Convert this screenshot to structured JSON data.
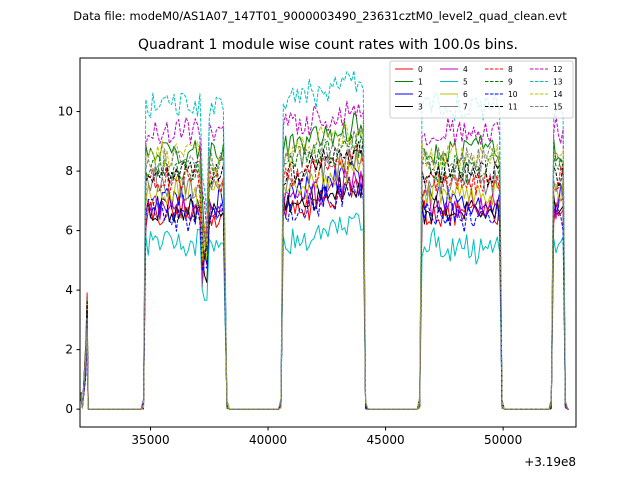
{
  "chart_data": {
    "type": "line",
    "suptitle": "Data file: modeM0/AS1A07_147T01_9000003490_23631cztM0_level2_quad_clean.evt",
    "title": "Quadrant 1 module wise count rates with 100.0s bins.",
    "xlabel": "",
    "ylabel": "",
    "x_offset_label": "+3.19e8",
    "xlim": [
      32000,
      53100
    ],
    "ylim": [
      -0.6,
      11.8
    ],
    "x_ticks": [
      35000,
      40000,
      45000,
      50000
    ],
    "x_tick_labels": [
      "35000",
      "40000",
      "45000",
      "50000"
    ],
    "y_ticks": [
      0,
      2,
      4,
      6,
      8,
      10
    ],
    "y_tick_labels": [
      "0",
      "2",
      "4",
      "6",
      "8",
      "10"
    ],
    "legend_position": "top-right",
    "intervals": [
      {
        "start": 32050,
        "end": 32350,
        "rise": 32250,
        "peak": 4.0
      },
      {
        "start": 34700,
        "end": 38250
      },
      {
        "start": 40550,
        "end": 44150
      },
      {
        "start": 46450,
        "end": 49950
      },
      {
        "start": 52050,
        "end": 52650
      }
    ],
    "series": [
      {
        "name": "0",
        "color": "#ff0000",
        "dash": false,
        "level": 6.6
      },
      {
        "name": "1",
        "color": "#008000",
        "dash": false,
        "level": 8.7
      },
      {
        "name": "2",
        "color": "#0000ff",
        "dash": false,
        "level": 7.0
      },
      {
        "name": "3",
        "color": "#000000",
        "dash": false,
        "level": 6.7
      },
      {
        "name": "4",
        "color": "#bf00bf",
        "dash": false,
        "level": 6.8
      },
      {
        "name": "5",
        "color": "#00bfbf",
        "dash": false,
        "level": 5.5
      },
      {
        "name": "6",
        "color": "#bfbf00",
        "dash": false,
        "level": 7.3
      },
      {
        "name": "7",
        "color": "#808080",
        "dash": false,
        "level": 7.6
      },
      {
        "name": "8",
        "color": "#ff0000",
        "dash": true,
        "level": 7.7
      },
      {
        "name": "9",
        "color": "#008000",
        "dash": true,
        "level": 8.1
      },
      {
        "name": "10",
        "color": "#0000ff",
        "dash": true,
        "level": 6.5
      },
      {
        "name": "11",
        "color": "#000000",
        "dash": true,
        "level": 7.9
      },
      {
        "name": "12",
        "color": "#bf00bf",
        "dash": true,
        "level": 9.3
      },
      {
        "name": "13",
        "color": "#00bfbf",
        "dash": true,
        "level": 10.2
      },
      {
        "name": "14",
        "color": "#bfbf00",
        "dash": true,
        "level": 8.5
      },
      {
        "name": "15",
        "color": "#808080",
        "dash": true,
        "level": 8.3
      }
    ]
  }
}
